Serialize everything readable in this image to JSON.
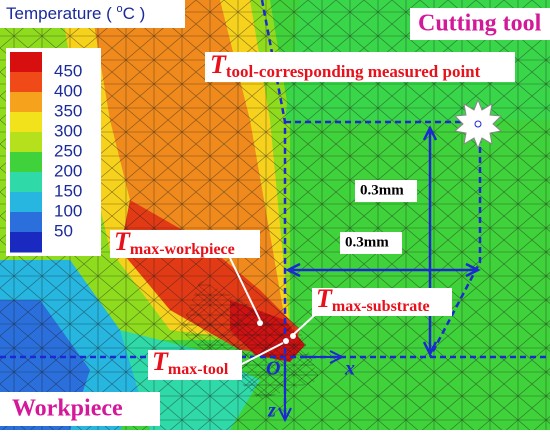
{
  "legend": {
    "title_parts": [
      "Temperature ( ",
      "o",
      "C )"
    ],
    "ticks": [
      450,
      400,
      350,
      300,
      250,
      200,
      150,
      100,
      50
    ]
  },
  "regions": {
    "tool": "Cutting tool",
    "workpiece": "Workpiece"
  },
  "points": [
    {
      "symbol": "T",
      "subscript": "tool-corresponding measured point"
    },
    {
      "symbol": "T",
      "subscript": "max-workpiece"
    },
    {
      "symbol": "T",
      "subscript": "max-substrate"
    },
    {
      "symbol": "T",
      "subscript": "max-tool"
    }
  ],
  "dimensions": [
    "0.3mm",
    "0.3mm"
  ],
  "axes": {
    "origin": "O",
    "x": "x",
    "z": "z"
  }
}
